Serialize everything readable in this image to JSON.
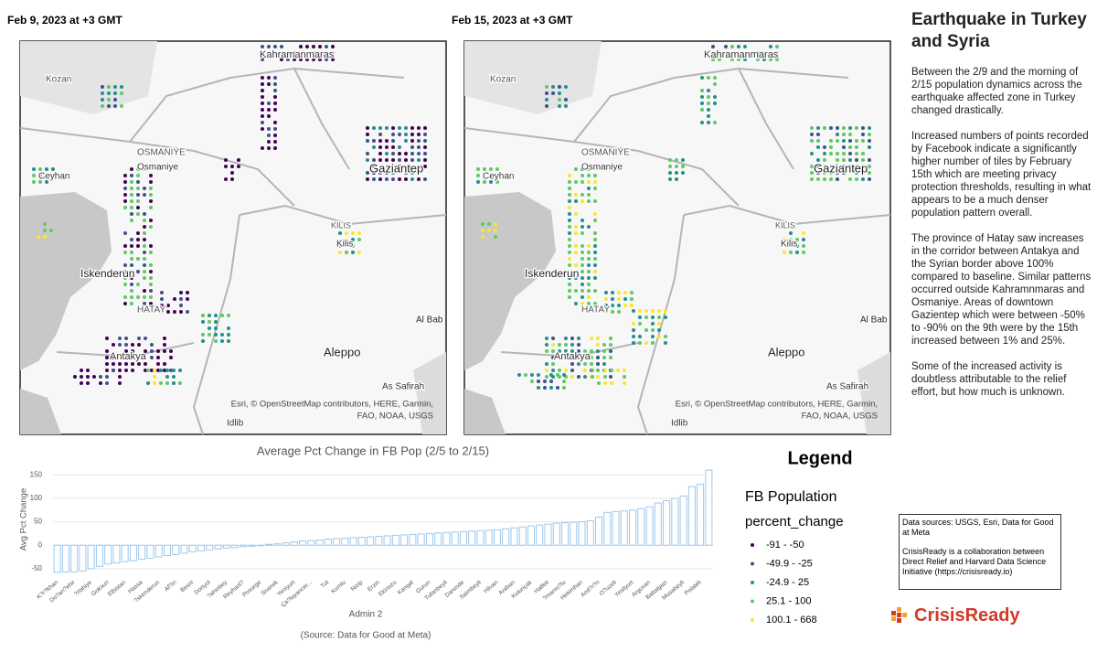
{
  "maps": [
    {
      "title": "Feb 9, 2023 at +3 GMT",
      "labels": [
        "Kozan",
        "Kahramanmaras",
        "OSMANIYE",
        "Osmaniye",
        "Ceyhan",
        "Gaziantep",
        "KILIS",
        "Kilis",
        "Iskenderun",
        "HATAY",
        "Antakya",
        "Al Bab",
        "Aleppo",
        "As Safirah",
        "Idlib"
      ],
      "attribution": [
        "Esri, © OpenStreetMap contributors, HERE, Garmin,",
        "FAO, NOAA, USGS"
      ]
    },
    {
      "title": "Feb 15, 2023 at +3 GMT",
      "labels": [
        "Kozan",
        "Kahramanmaras",
        "OSMANIYE",
        "Osmaniye",
        "Ceyhan",
        "Gaziantep",
        "KILIS",
        "Kilis",
        "Iskenderun",
        "HATAY",
        "Antakya",
        "Al Bab",
        "Aleppo",
        "As Safirah",
        "Idlib"
      ],
      "attribution": [
        "Esri, © OpenStreetMap contributors, HERE, Garmin,",
        "FAO, NOAA, USGS"
      ]
    }
  ],
  "chart_data": {
    "type": "bar",
    "title": "Average Pct Change in FB Pop (2/5 to 2/15)",
    "y_label": "Avg Pct Change",
    "x_label": "Admin 2",
    "source": "(Source: Data for Good at Meta)",
    "categories": [
      "K?r?khan",
      null,
      "Do?an?ehir",
      null,
      "?rlahiye",
      null,
      "Goksun",
      null,
      "Elbistan",
      null,
      "Hassa",
      null,
      "?skenderun",
      null,
      "Af?in",
      null,
      "Besni",
      null,
      "Dortyol",
      null,
      "?ahinbey",
      null,
      "Reyhanl?",
      null,
      "Posurge",
      null,
      "Siverek",
      null,
      "Yeniyurt",
      null,
      "Ça?layancer...",
      null,
      "Tut",
      null,
      "Kumlu",
      null,
      "Nizip",
      null,
      "Erzin",
      null,
      "Ekinozu",
      null,
      "Kangal",
      null,
      "Gurun",
      null,
      "Tufanbeyli",
      null,
      "Darende",
      null,
      "Saimbeyli",
      null,
      "Hilvan",
      null,
      "Araban",
      null,
      "Kulunçak",
      null,
      "Halfeti",
      null,
      "?mamo?lu",
      null,
      "Hekimhan",
      null,
      "And?r?n",
      null,
      "O?uzeli",
      null,
      "Yesilyurt",
      null,
      "Arguvan",
      null,
      "Battalgazi",
      null,
      "Musabeyli",
      null,
      "Polateli",
      null
    ],
    "values": [
      -58,
      -57,
      -57,
      -55,
      -50,
      -45,
      -40,
      -38,
      -35,
      -33,
      -30,
      -28,
      -25,
      -22,
      -20,
      -17,
      -14,
      -12,
      -10,
      -8,
      -6,
      -5,
      -3,
      -2,
      0,
      2,
      3,
      5,
      7,
      9,
      10,
      11,
      13,
      14,
      15,
      16,
      17,
      18,
      19,
      20,
      21,
      22,
      23,
      24,
      25,
      26,
      27,
      28,
      29,
      30,
      31,
      32,
      33,
      35,
      37,
      39,
      41,
      43,
      45,
      47,
      48,
      49,
      50,
      52,
      60,
      70,
      72,
      73,
      75,
      78,
      82,
      90,
      95,
      100,
      105,
      125,
      130,
      160
    ],
    "color": "#9cc8ee",
    "ylim": [
      -62,
      172
    ],
    "yticks": [
      -50,
      0,
      50,
      100,
      150
    ],
    "grid": true
  },
  "legend": {
    "title": "Legend",
    "layer": "FB Population",
    "field": "percent_change",
    "items": [
      {
        "label": "-91 - -50",
        "color": "#440154"
      },
      {
        "label": "-49.9 - -25",
        "color": "#3b528b"
      },
      {
        "label": "-24.9 - 25",
        "color": "#21908d"
      },
      {
        "label": "25.1 - 100",
        "color": "#5ec962"
      },
      {
        "label": "100.1 - 668",
        "color": "#fde725"
      }
    ]
  },
  "panel": {
    "title": "Earthquake in Turkey and Syria",
    "paragraphs": [
      "Between the 2/9 and the morning of 2/15 population dynamics across the earthquake affected zone in Turkey changed drastically.",
      "Increased numbers of points recorded by Facebook indicate a significantly higher number of tiles by February 15th which are meeting privacy protection thresholds, resulting in what appears to be a much denser population pattern overall.",
      "The province of Hatay saw increases in the corridor between Antakya and the Syrian border above 100% compared to baseline. Similar patterns occurred outside Kahramnmaras and Osmaniye. Areas of downtown Gazientep which were between -50% to -90% on the 9th were by the 15th increased between 1% and 25%.",
      "Some of the increased activity is doubtless attributable to the relief effort, but how much is unknown."
    ],
    "sources": "Data sources: USGS, Esri, Data for Good at Meta",
    "about": "CrisisReady is a collaboration between Direct Relief and Harvard Data Science Initiative (https://crisisready.io)",
    "logo": "CrisisReady"
  }
}
